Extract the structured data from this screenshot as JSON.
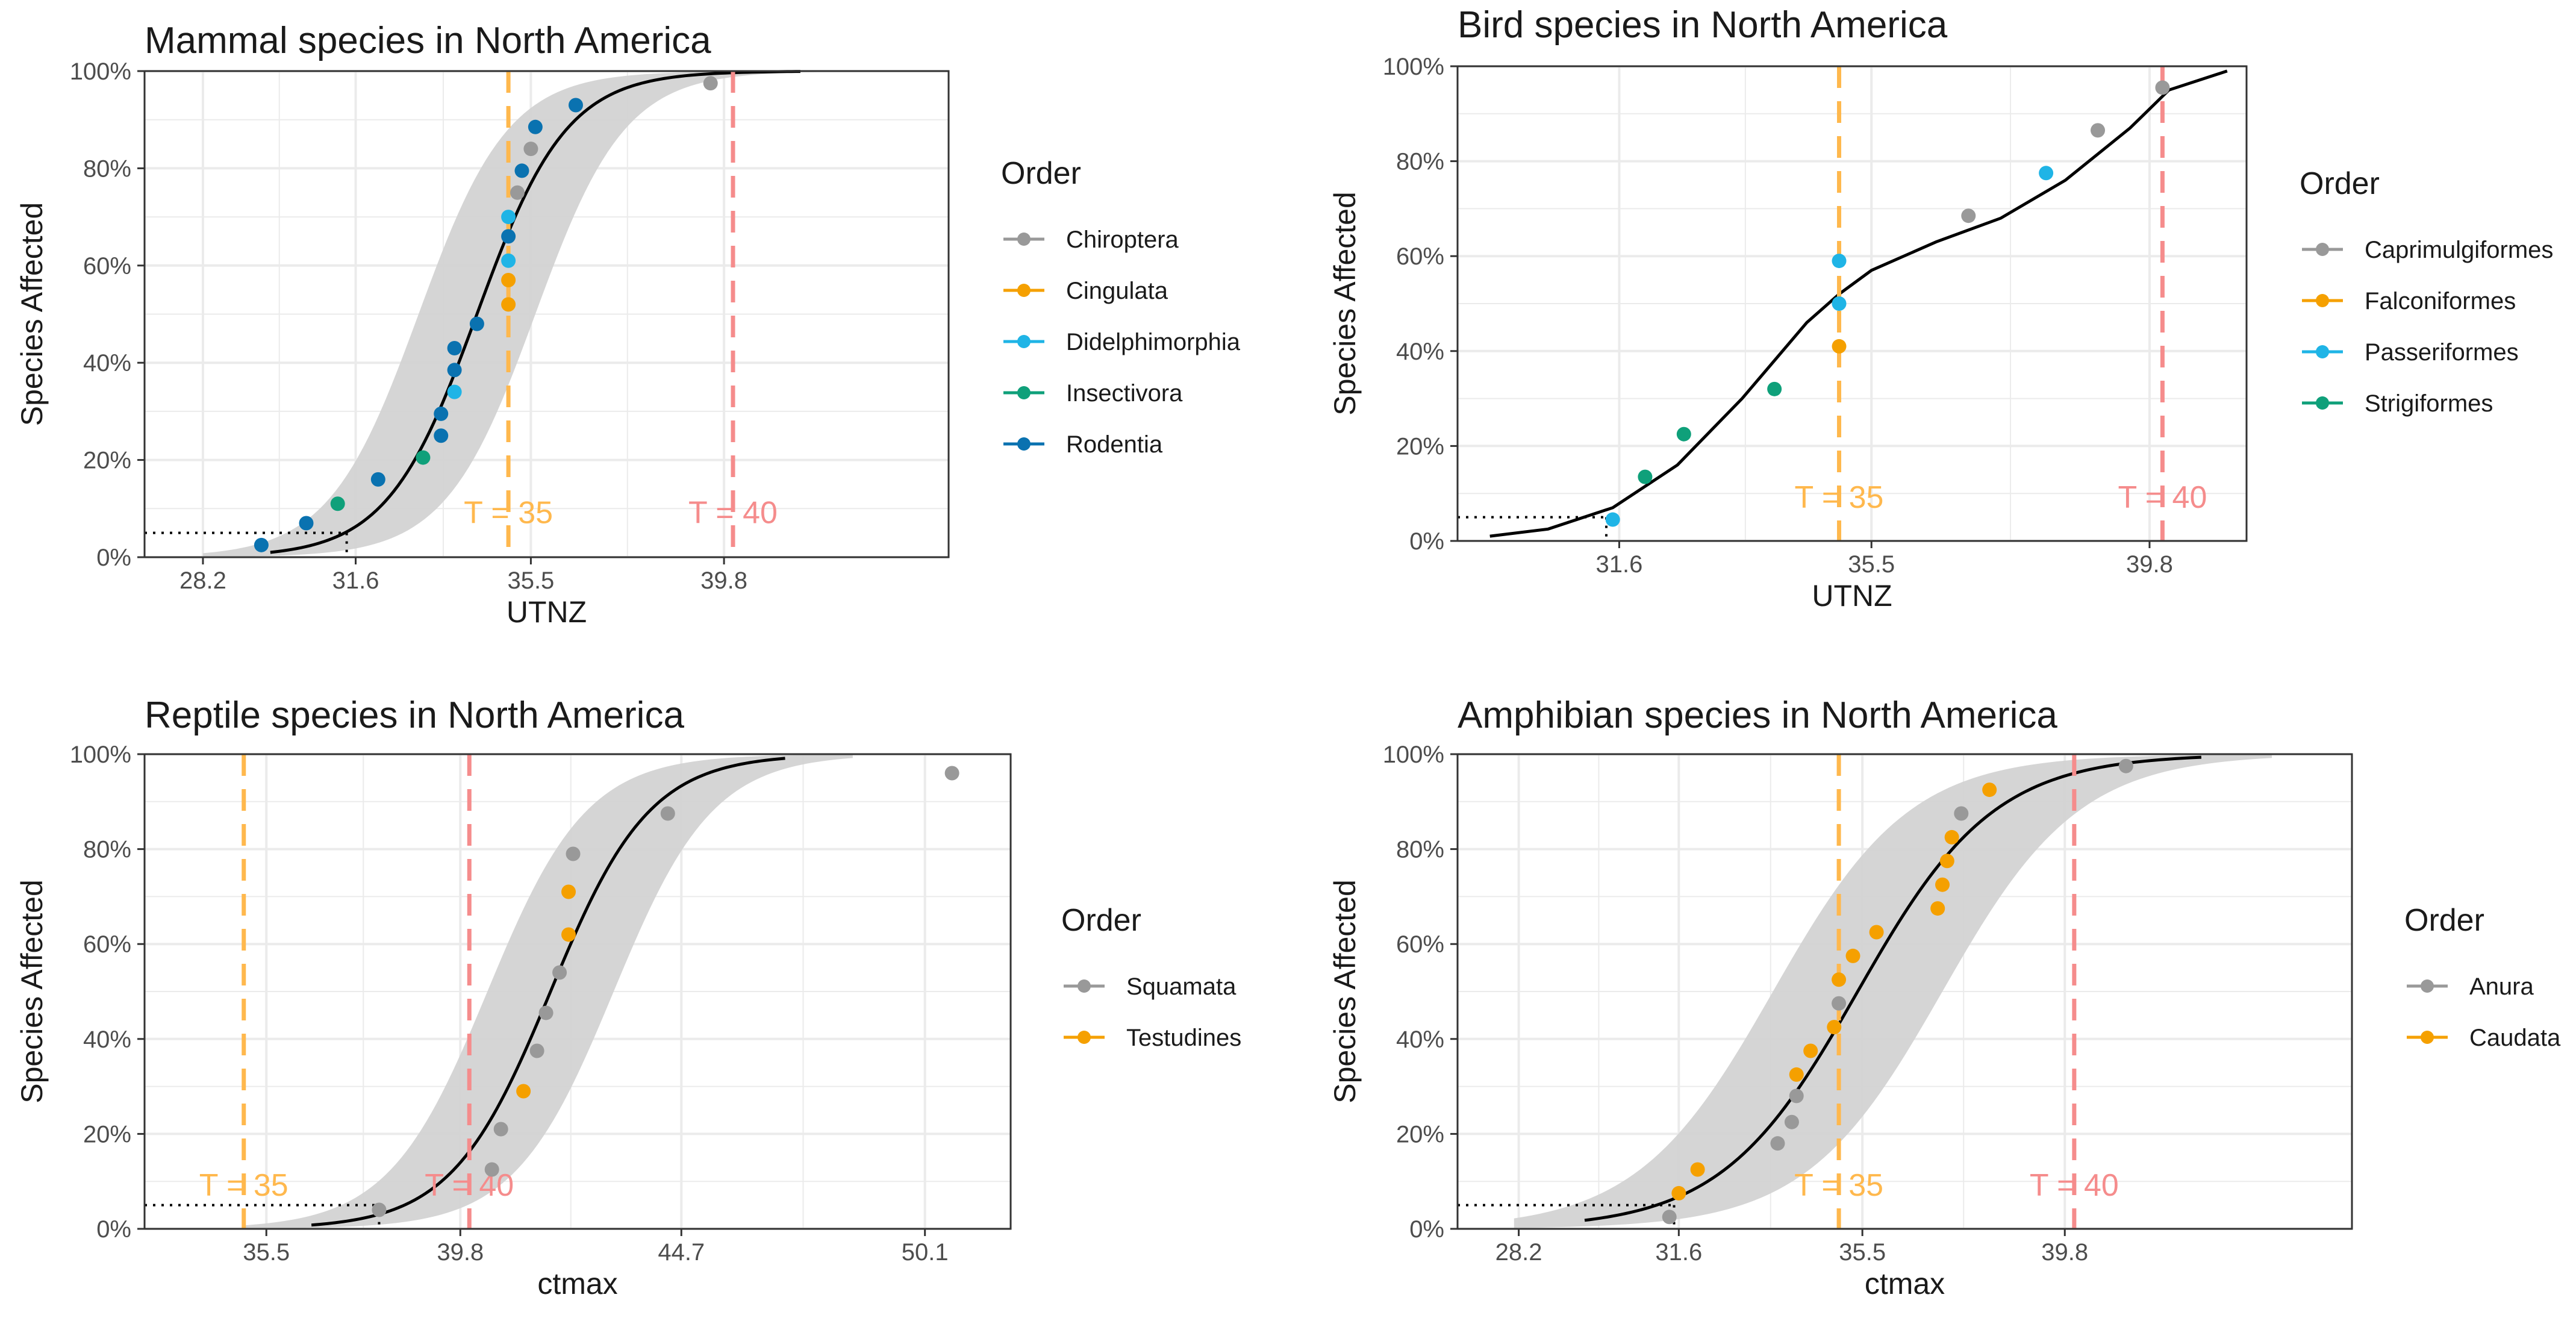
{
  "colors": {
    "Chiroptera": "#999999",
    "Cingulata": "#F5A000",
    "Didelphimorphia": "#1FB4E6",
    "Insectivora": "#0FA07A",
    "Rodentia": "#0A72B0",
    "Caprimulgiformes": "#999999",
    "Falconiformes": "#F5A000",
    "Passeriformes": "#1FB4E6",
    "Strigiformes": "#0FA07A",
    "Squamata": "#999999",
    "Testudines": "#F5A000",
    "Anura": "#999999",
    "Caudata": "#F5A000",
    "t35": "#FFB84D",
    "t40": "#F58C8C",
    "band": "#D3D3D3",
    "grid": "#EBEBEB",
    "curve": "#000000"
  },
  "chart_data": [
    {
      "type": "scatter",
      "title": "Mammal species in North America",
      "xlabel": "UTNZ",
      "ylabel": "Species Affected",
      "xlim": [
        26.9,
        44.8
      ],
      "ylim": [
        0,
        1
      ],
      "xticks": [
        28.2,
        31.6,
        35.5,
        39.8
      ],
      "xtick_labels": [
        "28.2",
        "31.6",
        "35.5",
        "39.8"
      ],
      "yticks": [
        0,
        0.2,
        0.4,
        0.6,
        0.8,
        1
      ],
      "ytick_labels": [
        "0%",
        "20%",
        "40%",
        "60%",
        "80%",
        "100%"
      ],
      "legend_title": "Order",
      "legend": [
        "Chiroptera",
        "Cingulata",
        "Didelphimorphia",
        "Insectivora",
        "Rodentia"
      ],
      "thresholds": [
        {
          "x": 35,
          "label": "T = 35"
        },
        {
          "x": 40,
          "label": "T = 40"
        }
      ],
      "threshold_label_y": 0.07,
      "fit": {
        "type": "logistic",
        "mid": 34.3,
        "scale": 1.0,
        "band": 1.3,
        "xmin": 29.7,
        "xmax": 41.5
      },
      "ref_hline": {
        "y": 0.05,
        "x_end": 31.4
      },
      "series": [
        {
          "name": "Chiroptera",
          "x": [
            35.2,
            35.5,
            39.5
          ],
          "y": [
            0.75,
            0.84,
            0.975
          ]
        },
        {
          "name": "Cingulata",
          "x": [
            35.0,
            35.0
          ],
          "y": [
            0.52,
            0.57
          ]
        },
        {
          "name": "Didelphimorphia",
          "x": [
            33.8,
            35.0,
            35.0
          ],
          "y": [
            0.34,
            0.61,
            0.7
          ]
        },
        {
          "name": "Insectivora",
          "x": [
            31.2,
            33.1
          ],
          "y": [
            0.11,
            0.205
          ]
        },
        {
          "name": "Rodentia",
          "x": [
            29.5,
            30.5,
            32.1,
            33.5,
            33.5,
            33.8,
            33.8,
            34.3,
            35.0,
            35.3,
            35.6,
            36.5
          ],
          "y": [
            0.025,
            0.07,
            0.16,
            0.25,
            0.295,
            0.385,
            0.43,
            0.48,
            0.66,
            0.795,
            0.885,
            0.93
          ]
        }
      ]
    },
    {
      "type": "scatter",
      "title": "Bird species in North America",
      "xlabel": "UTNZ",
      "ylabel": "Species Affected",
      "xlim": [
        29.1,
        41.3
      ],
      "ylim": [
        0,
        1
      ],
      "xticks": [
        31.6,
        35.5,
        39.8
      ],
      "xtick_labels": [
        "31.6",
        "35.5",
        "39.8"
      ],
      "yticks": [
        0,
        0.2,
        0.4,
        0.6,
        0.8,
        1
      ],
      "ytick_labels": [
        "0%",
        "20%",
        "40%",
        "60%",
        "80%",
        "100%"
      ],
      "legend_title": "Order",
      "legend": [
        "Caprimulgiformes",
        "Falconiformes",
        "Passeriformes",
        "Strigiformes"
      ],
      "thresholds": [
        {
          "x": 35,
          "label": "T = 35"
        },
        {
          "x": 40,
          "label": "T = 40"
        }
      ],
      "threshold_label_y": 0.07,
      "fit": {
        "type": "points",
        "x": [
          29.6,
          30.5,
          31.5,
          32.5,
          33.5,
          34.5,
          35.0,
          35.5,
          36.5,
          37.5,
          38.5,
          39.5,
          40.1,
          41.0
        ],
        "y": [
          0.01,
          0.025,
          0.07,
          0.16,
          0.3,
          0.46,
          0.52,
          0.57,
          0.63,
          0.68,
          0.76,
          0.87,
          0.95,
          0.99
        ]
      },
      "ref_hline": {
        "y": 0.05,
        "x_end": 31.4
      },
      "series": [
        {
          "name": "Caprimulgiformes",
          "x": [
            37.0,
            39.0,
            40.0
          ],
          "y": [
            0.685,
            0.865,
            0.955
          ]
        },
        {
          "name": "Falconiformes",
          "x": [
            35.0
          ],
          "y": [
            0.41
          ]
        },
        {
          "name": "Passeriformes",
          "x": [
            31.5,
            35.0,
            35.0,
            38.2
          ],
          "y": [
            0.045,
            0.5,
            0.59,
            0.775
          ]
        },
        {
          "name": "Strigiformes",
          "x": [
            32.0,
            32.6,
            34.0
          ],
          "y": [
            0.135,
            0.225,
            0.32
          ]
        }
      ]
    },
    {
      "type": "scatter",
      "title": "Reptile species in North America",
      "xlabel": "ctmax",
      "ylabel": "Species Affected",
      "xlim": [
        32.8,
        52.0
      ],
      "ylim": [
        0,
        1
      ],
      "xticks": [
        35.5,
        39.8,
        44.7,
        50.1
      ],
      "xtick_labels": [
        "35.5",
        "39.8",
        "44.7",
        "50.1"
      ],
      "yticks": [
        0,
        0.2,
        0.4,
        0.6,
        0.8,
        1
      ],
      "ytick_labels": [
        "0%",
        "20%",
        "40%",
        "60%",
        "80%",
        "100%"
      ],
      "legend_title": "Order",
      "legend": [
        "Squamata",
        "Testudines"
      ],
      "thresholds": [
        {
          "x": 35,
          "label": "T = 35"
        },
        {
          "x": 40,
          "label": "T = 40"
        }
      ],
      "threshold_label_y": 0.07,
      "fit": {
        "type": "logistic",
        "mid": 41.8,
        "scale": 1.1,
        "band": 1.4,
        "xmin": 36.5,
        "xmax": 47.0
      },
      "ref_hline": {
        "y": 0.05,
        "x_end": 38.0
      },
      "series": [
        {
          "name": "Squamata",
          "x": [
            38.0,
            40.5,
            40.7,
            41.5,
            41.7,
            42.0,
            42.3,
            44.4,
            50.7
          ],
          "y": [
            0.04,
            0.125,
            0.21,
            0.375,
            0.455,
            0.54,
            0.79,
            0.875,
            0.96
          ]
        },
        {
          "name": "Testudines",
          "x": [
            41.2,
            42.2,
            42.2
          ],
          "y": [
            0.29,
            0.62,
            0.71
          ]
        }
      ]
    },
    {
      "type": "scatter",
      "title": "Amphibian species in North America",
      "xlabel": "ctmax",
      "ylabel": "Species Affected",
      "xlim": [
        26.9,
        45.9
      ],
      "ylim": [
        0,
        1
      ],
      "xticks": [
        28.2,
        31.6,
        35.5,
        39.8
      ],
      "xtick_labels": [
        "28.2",
        "31.6",
        "35.5",
        "39.8"
      ],
      "yticks": [
        0,
        0.2,
        0.4,
        0.6,
        0.8,
        1
      ],
      "ytick_labels": [
        "0%",
        "20%",
        "40%",
        "60%",
        "80%",
        "100%"
      ],
      "legend_title": "Order",
      "legend": [
        "Anura",
        "Caudata"
      ],
      "thresholds": [
        {
          "x": 35,
          "label": "T = 35"
        },
        {
          "x": 40,
          "label": "T = 40"
        }
      ],
      "threshold_label_y": 0.07,
      "fit": {
        "type": "logistic",
        "mid": 35.4,
        "scale": 1.45,
        "band": 1.8,
        "xmin": 29.6,
        "xmax": 42.7
      },
      "ref_hline": {
        "y": 0.05,
        "x_end": 31.5
      },
      "series": [
        {
          "name": "Anura",
          "x": [
            31.4,
            33.7,
            34.0,
            34.1,
            35.0,
            37.6,
            41.1
          ],
          "y": [
            0.025,
            0.18,
            0.225,
            0.28,
            0.475,
            0.875,
            0.975
          ]
        },
        {
          "name": "Caudata",
          "x": [
            31.6,
            32.0,
            34.1,
            34.4,
            34.9,
            35.0,
            35.3,
            35.8,
            37.1,
            37.2,
            37.3,
            37.4,
            38.2
          ],
          "y": [
            0.075,
            0.125,
            0.325,
            0.375,
            0.425,
            0.525,
            0.575,
            0.625,
            0.675,
            0.725,
            0.775,
            0.825,
            0.925
          ]
        }
      ]
    }
  ]
}
